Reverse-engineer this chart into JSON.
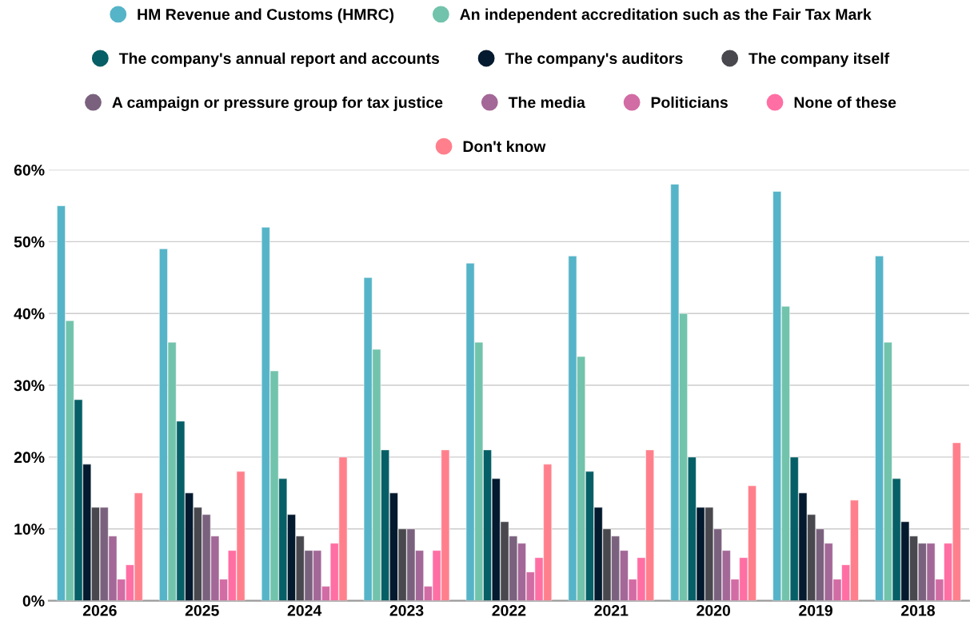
{
  "chart_data": {
    "type": "bar",
    "categories": [
      "2026",
      "2025",
      "2024",
      "2023",
      "2022",
      "2021",
      "2020",
      "2019",
      "2018"
    ],
    "series": [
      {
        "name": "HM Revenue and Customs (HMRC)",
        "color": "#56b4c8",
        "values": [
          55,
          49,
          52,
          45,
          47,
          48,
          58,
          57,
          48
        ]
      },
      {
        "name": "An independent accreditation such as the Fair Tax Mark",
        "color": "#72c3ab",
        "values": [
          39,
          36,
          32,
          35,
          36,
          34,
          40,
          41,
          36
        ]
      },
      {
        "name": "The company's annual report and accounts",
        "color": "#065f66",
        "values": [
          28,
          25,
          17,
          21,
          21,
          18,
          20,
          20,
          17
        ]
      },
      {
        "name": "The company's auditors",
        "color": "#041a2e",
        "values": [
          19,
          15,
          12,
          15,
          17,
          13,
          13,
          15,
          11
        ]
      },
      {
        "name": "The company itself",
        "color": "#48484e",
        "values": [
          13,
          13,
          9,
          10,
          11,
          10,
          13,
          12,
          9
        ]
      },
      {
        "name": "A campaign or pressure group for tax justice",
        "color": "#7a627e",
        "values": [
          13,
          12,
          7,
          10,
          9,
          9,
          10,
          10,
          8
        ]
      },
      {
        "name": "The media",
        "color": "#a36897",
        "values": [
          9,
          9,
          7,
          7,
          8,
          7,
          7,
          8,
          8
        ]
      },
      {
        "name": "Politicians",
        "color": "#d26ca4",
        "values": [
          3,
          3,
          2,
          2,
          4,
          3,
          3,
          3,
          3
        ]
      },
      {
        "name": "None of these",
        "color": "#ff6fa3",
        "values": [
          5,
          7,
          8,
          7,
          6,
          6,
          6,
          5,
          8
        ]
      },
      {
        "name": "Don't know",
        "color": "#ff808c",
        "values": [
          15,
          18,
          20,
          21,
          19,
          21,
          16,
          14,
          22
        ]
      }
    ],
    "ylim": [
      0,
      60
    ],
    "yticks": [
      {
        "value": 0,
        "label": "0%"
      },
      {
        "value": 10,
        "label": "10%"
      },
      {
        "value": 20,
        "label": "20%"
      },
      {
        "value": 30,
        "label": "30%"
      },
      {
        "value": 40,
        "label": "40%"
      },
      {
        "value": 50,
        "label": "50%"
      },
      {
        "value": 60,
        "label": "60%"
      }
    ],
    "grid": "y",
    "legend": "top"
  }
}
